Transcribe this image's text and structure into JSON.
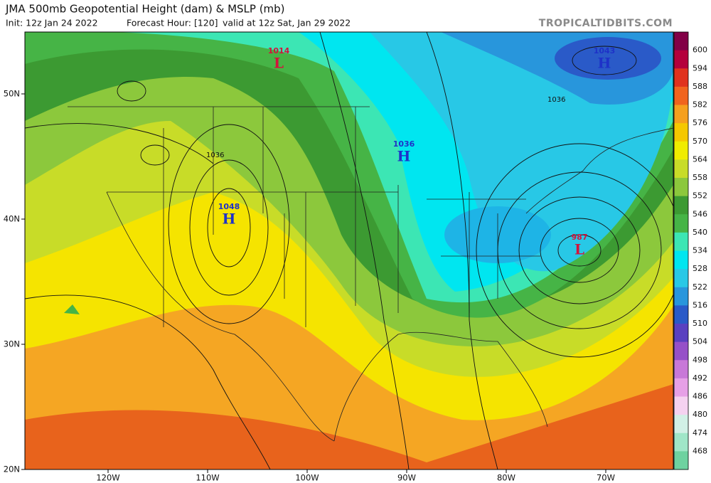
{
  "header": {
    "title": "JMA 500mb Geopotential Height (dam) & MSLP (mb)",
    "init": "Init: 12z Jan 24 2022",
    "forecast_hour": "Forecast Hour: [120]",
    "valid": "valid at 12z Sat, Jan 29 2022",
    "site": "TROPICALTIDBITS.COM"
  },
  "colorbar": {
    "labels": [
      "600",
      "594",
      "588",
      "582",
      "576",
      "570",
      "564",
      "558",
      "552",
      "546",
      "540",
      "534",
      "528",
      "522",
      "516",
      "510",
      "504",
      "498",
      "492",
      "486",
      "480",
      "474",
      "468"
    ],
    "colors": [
      "#820046",
      "#b4003c",
      "#e0321e",
      "#f0641e",
      "#f5a01e",
      "#f5c800",
      "#f0ec00",
      "#c8dc28",
      "#8cc83c",
      "#3c9a32",
      "#46b446",
      "#3ce6b4",
      "#00e6f0",
      "#28c8e6",
      "#2896dc",
      "#2a5ac8",
      "#5a40c0",
      "#9650c8",
      "#c878d8",
      "#e6a0e6",
      "#f5d2f0",
      "#d2f0e6",
      "#a0e6c8",
      "#6ed2a0"
    ]
  },
  "latitudes": [
    "50N",
    "40N",
    "30N",
    "20N"
  ],
  "longitudes": [
    "120W",
    "110W",
    "100W",
    "90W",
    "80W",
    "70W"
  ],
  "pressure_centers": [
    {
      "letter": "L",
      "value": "1014"
    },
    {
      "letter": "H",
      "value": "1043"
    },
    {
      "letter": "H",
      "value": "1036"
    },
    {
      "letter": "H",
      "value": "1048"
    },
    {
      "letter": "L",
      "value": "987"
    }
  ],
  "contour_labels": [
    "1036",
    "1036"
  ]
}
